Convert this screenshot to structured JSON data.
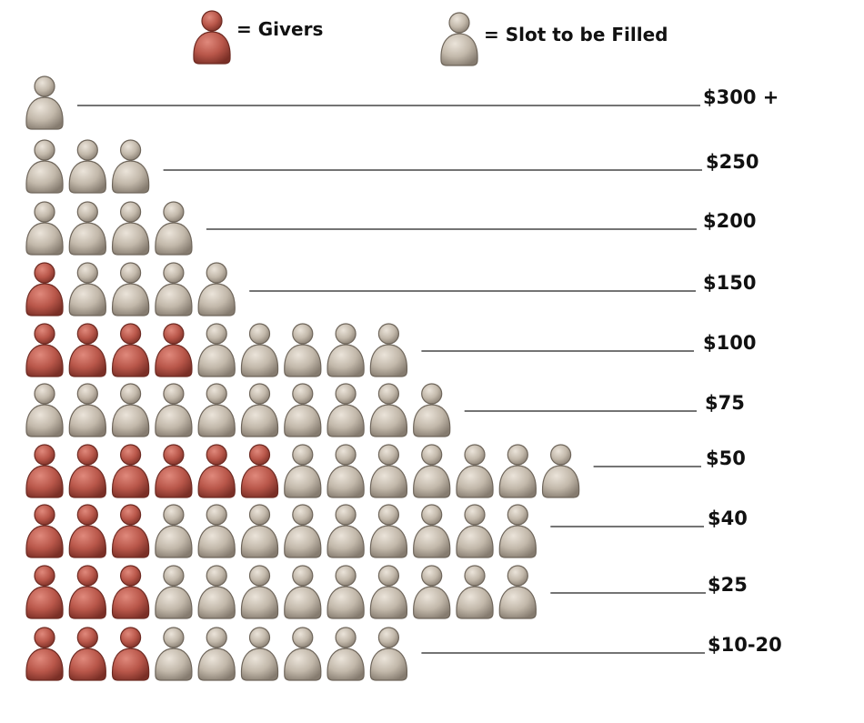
{
  "chart_data": {
    "type": "pictogram",
    "legend": [
      {
        "label": "= Givers",
        "color": "#b9574a",
        "icon": "person-icon"
      },
      {
        "label": "= Slot to be Filled",
        "color": "#c2b8aa",
        "icon": "person-icon"
      }
    ],
    "tiers": [
      {
        "label": "$300 +",
        "givers": 0,
        "open_slots": 1
      },
      {
        "label": "$250",
        "givers": 0,
        "open_slots": 3
      },
      {
        "label": "$200",
        "givers": 0,
        "open_slots": 4
      },
      {
        "label": "$150",
        "givers": 1,
        "open_slots": 4
      },
      {
        "label": "$100",
        "givers": 4,
        "open_slots": 5
      },
      {
        "label": "$75",
        "givers": 0,
        "open_slots": 10
      },
      {
        "label": "$50",
        "givers": 6,
        "open_slots": 7
      },
      {
        "label": "$40",
        "givers": 3,
        "open_slots": 9
      },
      {
        "label": "$25",
        "givers": 3,
        "open_slots": 9
      },
      {
        "label": "$10-20",
        "givers": 3,
        "open_slots": 6
      }
    ]
  }
}
